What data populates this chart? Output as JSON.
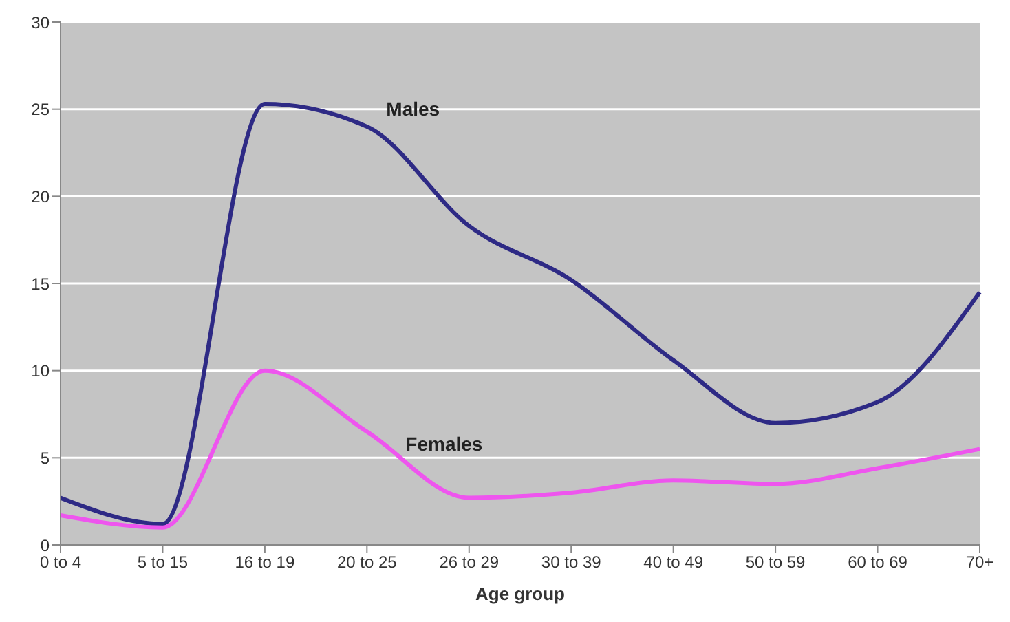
{
  "chart_data": {
    "type": "line",
    "xlabel": "Age group",
    "categories": [
      "0 to 4",
      "5 to 15",
      "16 to 19",
      "20 to 25",
      "26 to 29",
      "30 to 39",
      "40 to 49",
      "50 to 59",
      "60 to 69",
      "70+"
    ],
    "series": [
      {
        "name": "Males",
        "color": "#2e2a85",
        "values": [
          2.7,
          1.2,
          25.3,
          24,
          18.3,
          15.2,
          10.6,
          7,
          8.2,
          14.5
        ]
      },
      {
        "name": "Females",
        "color": "#ee55ee",
        "values": [
          1.7,
          1,
          10,
          6.5,
          2.7,
          3,
          3.7,
          3.5,
          4.4,
          5.5
        ]
      }
    ],
    "ylim": [
      0,
      30
    ],
    "yticks": [
      0,
      5,
      10,
      15,
      20,
      25,
      30
    ],
    "grid": "y",
    "legend": false,
    "marker": "none",
    "line_style": "solid"
  }
}
